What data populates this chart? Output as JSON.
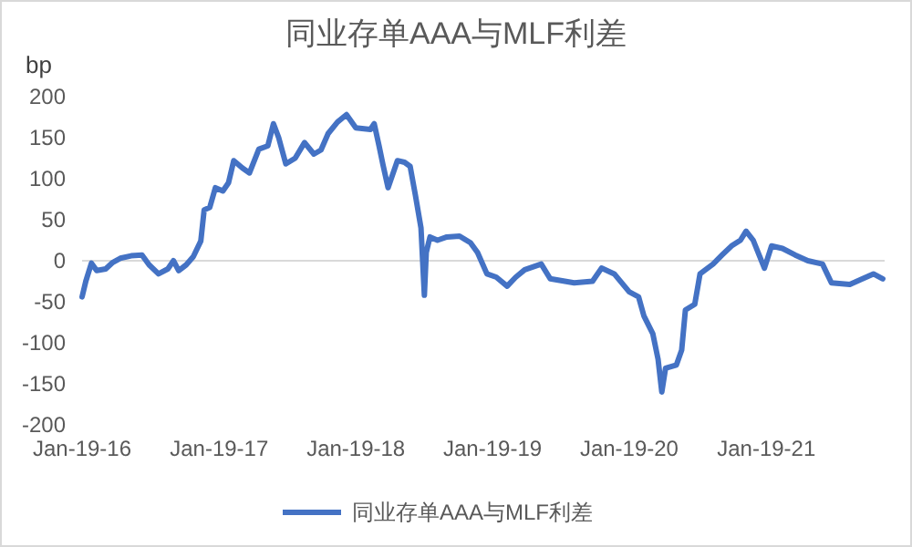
{
  "chart_data": {
    "type": "line",
    "title": "同业存单AAA与MLF利差",
    "ylabel": "bp",
    "x": [
      "2016-01-19",
      "2016-01-29",
      "2016-02-13",
      "2016-02-27",
      "2016-03-22",
      "2016-04-10",
      "2016-04-30",
      "2016-05-29",
      "2016-06-27",
      "2016-07-16",
      "2016-08-10",
      "2016-09-04",
      "2016-09-19",
      "2016-10-03",
      "2016-10-23",
      "2016-11-11",
      "2016-12-01",
      "2016-12-10",
      "2016-12-25",
      "2017-01-09",
      "2017-01-29",
      "2017-02-13",
      "2017-02-27",
      "2017-03-22",
      "2017-04-10",
      "2017-05-05",
      "2017-05-29",
      "2017-06-13",
      "2017-06-27",
      "2017-07-16",
      "2017-08-10",
      "2017-09-04",
      "2017-09-29",
      "2017-10-18",
      "2017-11-06",
      "2017-12-01",
      "2017-12-25",
      "2018-01-19",
      "2018-02-27",
      "2018-03-09",
      "2018-03-22",
      "2018-04-01",
      "2018-04-15",
      "2018-05-10",
      "2018-05-29",
      "2018-06-13",
      "2018-06-27",
      "2018-07-12",
      "2018-07-21",
      "2018-07-26",
      "2018-08-05",
      "2018-08-25",
      "2018-09-19",
      "2018-10-23",
      "2018-11-21",
      "2018-12-10",
      "2019-01-04",
      "2019-01-29",
      "2019-02-27",
      "2019-03-22",
      "2019-04-15",
      "2019-05-29",
      "2019-06-22",
      "2019-08-25",
      "2019-10-13",
      "2019-11-06",
      "2019-12-10",
      "2020-01-19",
      "2020-02-13",
      "2020-02-27",
      "2020-03-22",
      "2020-04-05",
      "2020-04-15",
      "2020-04-25",
      "2020-05-24",
      "2020-06-07",
      "2020-06-17",
      "2020-07-12",
      "2020-07-26",
      "2020-08-30",
      "2020-09-23",
      "2020-10-18",
      "2020-11-11",
      "2020-11-26",
      "2020-12-15",
      "2021-01-14",
      "2021-02-02",
      "2021-03-03",
      "2021-04-06",
      "2021-05-10",
      "2021-06-18",
      "2021-07-12",
      "2021-08-30",
      "2021-10-03",
      "2021-11-01",
      "2021-11-26"
    ],
    "series": [
      {
        "name": "同业存单AAA与MLF利差",
        "color": "#4472c4",
        "values": [
          -44,
          -25,
          -3,
          -12,
          -10,
          -2,
          3,
          6,
          7,
          -5,
          -16,
          -10,
          0,
          -12,
          -5,
          5,
          24,
          62,
          65,
          89,
          85,
          95,
          122,
          113,
          107,
          136,
          140,
          167,
          150,
          118,
          125,
          144,
          130,
          135,
          155,
          169,
          178,
          162,
          160,
          167,
          140,
          118,
          89,
          122,
          120,
          115,
          80,
          40,
          -42,
          10,
          29,
          25,
          29,
          30,
          22,
          10,
          -16,
          -20,
          -31,
          -20,
          -11,
          -4,
          -22,
          -27,
          -25,
          -9,
          -16,
          -38,
          -44,
          -67,
          -89,
          -120,
          -160,
          -131,
          -127,
          -109,
          -60,
          -53,
          -16,
          -4,
          7,
          18,
          25,
          36,
          25,
          -9,
          18,
          15,
          7,
          0,
          -4,
          -27,
          -29,
          -22,
          -16,
          -22
        ]
      }
    ],
    "xlim": [
      "2016-01-19",
      "2021-12-01"
    ],
    "xticks": [
      {
        "value": "2016-01-19",
        "label": "Jan-19-16"
      },
      {
        "value": "2017-01-19",
        "label": "Jan-19-17"
      },
      {
        "value": "2018-01-19",
        "label": "Jan-19-18"
      },
      {
        "value": "2019-01-19",
        "label": "Jan-19-19"
      },
      {
        "value": "2020-01-19",
        "label": "Jan-19-20"
      },
      {
        "value": "2021-01-19",
        "label": "Jan-19-21"
      }
    ],
    "ylim": [
      -200,
      200
    ],
    "yticks": [
      -200,
      -150,
      -100,
      -50,
      0,
      50,
      100,
      150,
      200
    ],
    "ref_lines": [
      {
        "axis": "y",
        "value": 0,
        "color": "#d9d9d9"
      }
    ],
    "grid": false,
    "legend": "bottom",
    "marker": "none",
    "line_style": "solid"
  }
}
